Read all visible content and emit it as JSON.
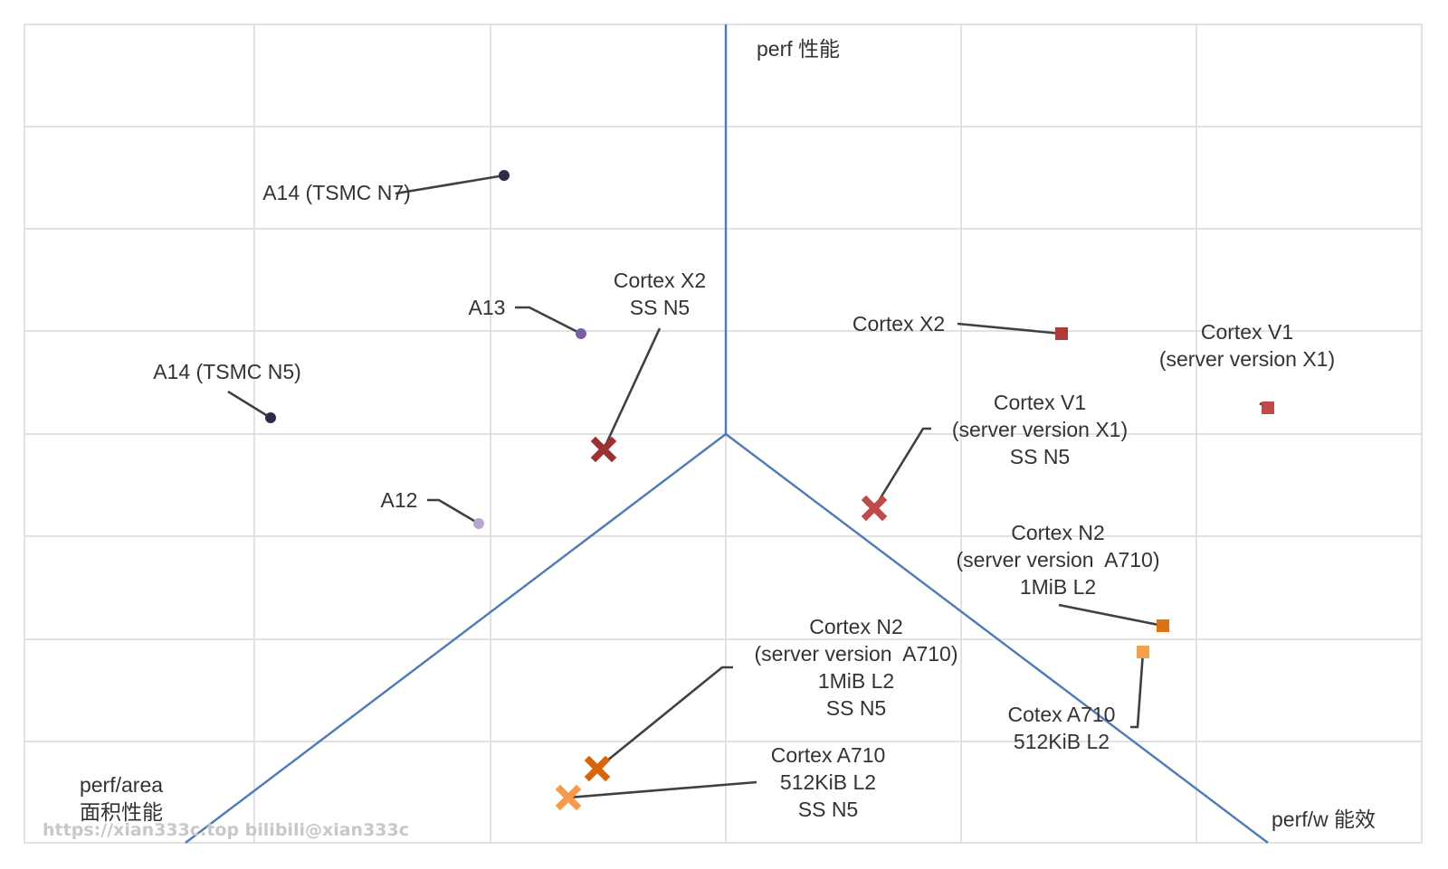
{
  "chart_data": {
    "type": "scatter",
    "grid": true,
    "legend": "none",
    "axes": [
      {
        "name": "perf_axis",
        "label": "perf 性能"
      },
      {
        "name": "perf_area_axis",
        "label_lines": [
          "perf/area",
          "面积性能"
        ]
      },
      {
        "name": "perf_w_axis",
        "label": "perf/w 能效"
      }
    ],
    "points": [
      {
        "name": "a14-n7",
        "label_lines": [
          "A14 (TSMC N7)"
        ],
        "marker": "circle",
        "color": "#2e2a4a"
      },
      {
        "name": "a13",
        "label_lines": [
          "A13"
        ],
        "marker": "circle",
        "color": "#7a5fa6"
      },
      {
        "name": "a14-n5",
        "label_lines": [
          "A14 (TSMC N5)"
        ],
        "marker": "circle",
        "color": "#2e2a4a"
      },
      {
        "name": "a12",
        "label_lines": [
          "A12"
        ],
        "marker": "circle",
        "color": "#b7a6d3"
      },
      {
        "name": "cortex-x2-ss",
        "label_lines": [
          "Cortex X2",
          "SS N5"
        ],
        "marker": "x",
        "color": "#9b3232"
      },
      {
        "name": "cortex-x2",
        "label_lines": [
          "Cortex X2"
        ],
        "marker": "square",
        "color": "#b03a3a"
      },
      {
        "name": "cortex-v1",
        "label_lines": [
          "Cortex V1",
          "(server version X1)"
        ],
        "marker": "square",
        "color": "#c0494a"
      },
      {
        "name": "cortex-v1-ss",
        "label_lines": [
          "Cortex V1",
          "(server version X1)",
          "SS N5"
        ],
        "marker": "x",
        "color": "#c0494a"
      },
      {
        "name": "cortex-n2",
        "label_lines": [
          "Cortex N2",
          "(server version  A710)",
          "1MiB L2"
        ],
        "marker": "square",
        "color": "#e07014"
      },
      {
        "name": "cotex-a710",
        "label_lines": [
          "Cotex A710",
          "512KiB L2"
        ],
        "marker": "square",
        "color": "#f4a04a"
      },
      {
        "name": "cortex-n2-ss",
        "label_lines": [
          "Cortex N2",
          "(server version  A710)",
          "1MiB L2",
          "SS N5"
        ],
        "marker": "x",
        "color": "#d8650e"
      },
      {
        "name": "cortex-a710-ss",
        "label_lines": [
          "Cortex A710",
          "512KiB L2",
          "SS N5"
        ],
        "marker": "x",
        "color": "#f49a4a"
      }
    ]
  },
  "colors": {
    "grid": "#d9d9d9",
    "axis": "#4a7ab8",
    "leader": "#404040",
    "text": "#333333",
    "watermark": "#c8c8c8"
  },
  "watermark": "https://xian333c.top bilibili@xian333c"
}
